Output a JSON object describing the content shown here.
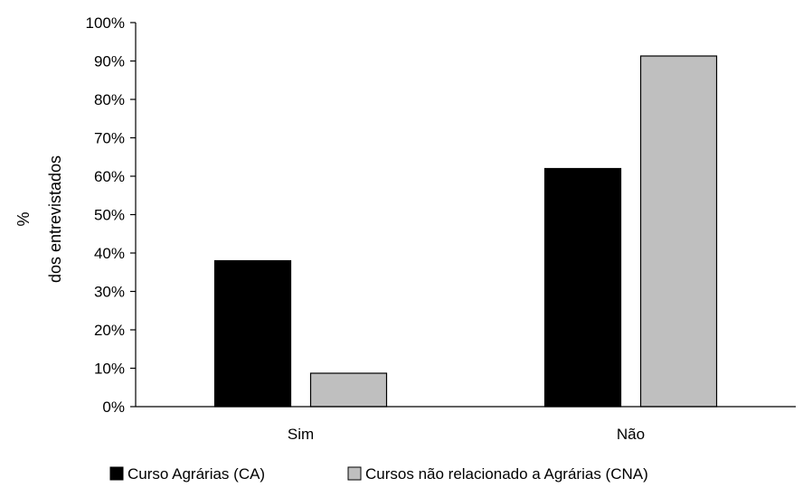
{
  "chart_data": {
    "type": "bar",
    "title": "",
    "xlabel": "",
    "ylabel_lines": [
      "%",
      "dos entrevistados"
    ],
    "categories": [
      "Sim",
      "Não"
    ],
    "series": [
      {
        "name": "Curso Agrárias (CA)",
        "values": [
          38,
          62
        ],
        "color": "#000000"
      },
      {
        "name": "Cursos não relacionado a Agrárias (CNA)",
        "values": [
          8.7,
          91.3
        ],
        "color": "#bfbfbf"
      }
    ],
    "ylim": [
      0,
      100
    ],
    "yticks": [
      0,
      10,
      20,
      30,
      40,
      50,
      60,
      70,
      80,
      90,
      100
    ],
    "ytick_labels": [
      "0%",
      "10%",
      "20%",
      "30%",
      "40%",
      "50%",
      "60%",
      "70%",
      "80%",
      "90%",
      "100%"
    ],
    "grid": false,
    "legend_position": "bottom"
  }
}
